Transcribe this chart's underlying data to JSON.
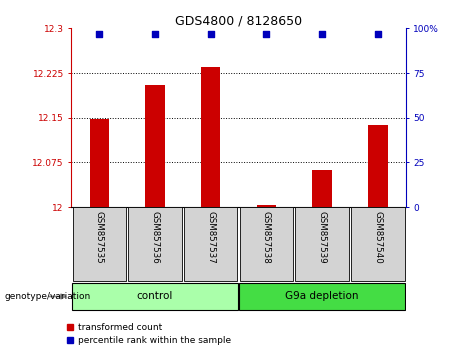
{
  "title": "GDS4800 / 8128650",
  "samples": [
    "GSM857535",
    "GSM857536",
    "GSM857537",
    "GSM857538",
    "GSM857539",
    "GSM857540"
  ],
  "red_values": [
    12.148,
    12.205,
    12.235,
    12.003,
    12.063,
    12.138
  ],
  "blue_values": [
    97,
    97,
    97,
    97,
    97,
    97
  ],
  "left_ylim": [
    12.0,
    12.3
  ],
  "right_ylim": [
    0,
    100
  ],
  "left_yticks": [
    12,
    12.075,
    12.15,
    12.225,
    12.3
  ],
  "right_yticks": [
    0,
    25,
    50,
    75,
    100
  ],
  "left_ytick_labels": [
    "12",
    "12.075",
    "12.15",
    "12.225",
    "12.3"
  ],
  "right_ytick_labels": [
    "0",
    "25",
    "50",
    "75",
    "100%"
  ],
  "groups": [
    {
      "label": "control",
      "indices": [
        0,
        1,
        2
      ],
      "color": "#aaffaa"
    },
    {
      "label": "G9a depletion",
      "indices": [
        3,
        4,
        5
      ],
      "color": "#44dd44"
    }
  ],
  "genotype_label": "genotype/variation",
  "legend_red": "transformed count",
  "legend_blue": "percentile rank within the sample",
  "red_color": "#CC0000",
  "blue_color": "#0000BB",
  "bar_bg_color": "#D3D3D3",
  "left_tick_color": "#CC0000",
  "right_tick_color": "#0000BB",
  "grid_yticks": [
    12.075,
    12.15,
    12.225
  ]
}
